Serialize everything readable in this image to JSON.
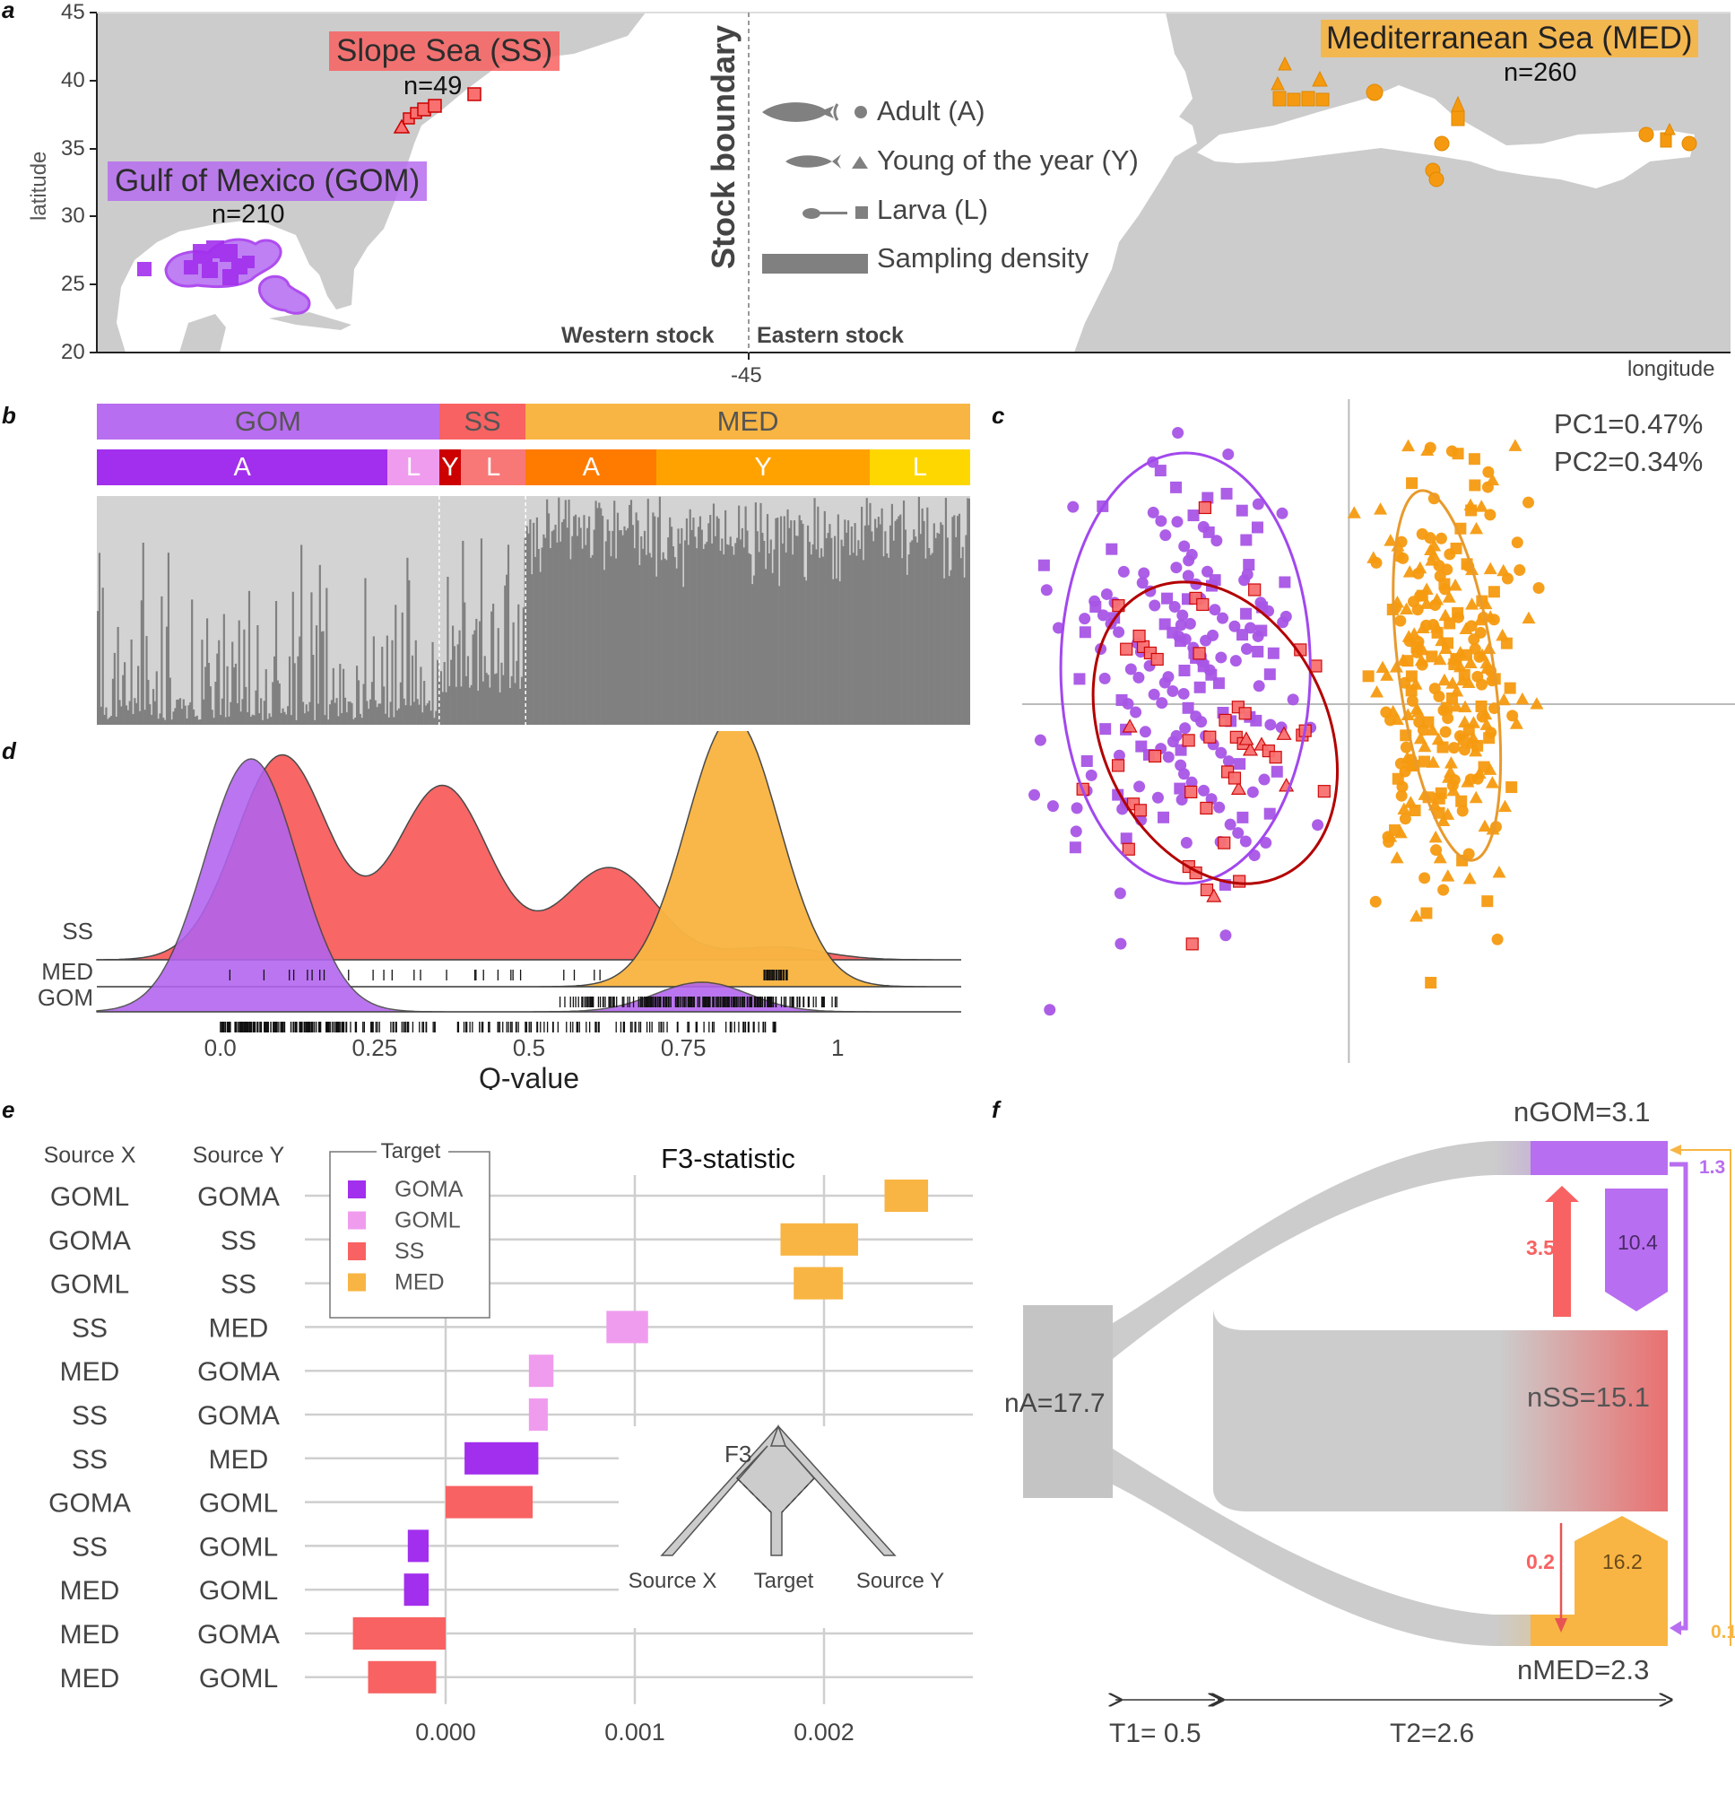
{
  "panels": {
    "a": "a",
    "b": "b",
    "c": "c",
    "d": "d",
    "e": "e",
    "f": "f"
  },
  "colors": {
    "GOM": "#b86ef0",
    "GOM_dark": "#a22fed",
    "GOML": "#f09cee",
    "SS": "#f86262",
    "SS_dark": "#cc0000",
    "MED": "#f8b543",
    "MED_A": "#ff7b00",
    "MED_Y": "#ffa200",
    "MED_L": "#ffd700",
    "land": "#cccccc",
    "grey_bar": "#808080"
  },
  "panel_a": {
    "ylabel": "latitude",
    "xlabel": "longitude",
    "lat_ticks": [
      "45",
      "40",
      "35",
      "30",
      "25",
      "20"
    ],
    "lon_tick": "-45",
    "stock_boundary": "Stock boundary",
    "western": "Western stock",
    "eastern": "Eastern stock",
    "regions": [
      {
        "name": "Slope Sea (SS)",
        "n": "n=49",
        "key": "SS"
      },
      {
        "name": "Gulf of Mexico (GOM)",
        "n": "n=210",
        "key": "GOM"
      },
      {
        "name": "Mediterranean Sea (MED)",
        "n": "n=260",
        "key": "MED"
      }
    ],
    "legend": [
      {
        "shape": "circle",
        "label": "Adult (A)",
        "icon": "adult-tuna-icon"
      },
      {
        "shape": "triangle",
        "label": "Young of the year (Y)",
        "icon": "young-tuna-icon"
      },
      {
        "shape": "square",
        "label": "Larva (L)",
        "icon": "larva-icon"
      },
      {
        "shape": "bar",
        "label": "Sampling density",
        "icon": "density-swatch"
      }
    ]
  },
  "panel_b": {
    "regions": [
      {
        "label": "GOM",
        "fraction": 0.392,
        "color": "#b86ef0"
      },
      {
        "label": "SS",
        "fraction": 0.099,
        "color": "#f86262"
      },
      {
        "label": "MED",
        "fraction": 0.509,
        "color": "#f8b543"
      }
    ],
    "stages": [
      {
        "label": "A",
        "fraction": 0.333,
        "color": "#a22fed"
      },
      {
        "label": "L",
        "fraction": 0.059,
        "color": "#f09cee"
      },
      {
        "label": "Y",
        "fraction": 0.025,
        "color": "#cc0000"
      },
      {
        "label": "L",
        "fraction": 0.074,
        "color": "#f87878"
      },
      {
        "label": "A",
        "fraction": 0.15,
        "color": "#ff7b00"
      },
      {
        "label": "Y",
        "fraction": 0.244,
        "color": "#ffa200"
      },
      {
        "label": "L",
        "fraction": 0.115,
        "color": "#ffd700"
      }
    ],
    "mean_ancestry": {
      "GOM": 0.12,
      "SS": 0.28,
      "MED": 0.82
    }
  },
  "chart_data": [
    {
      "id": "pca",
      "type": "scatter",
      "title": "",
      "annotations": [
        "PC1=0.47%",
        "PC2=0.34%"
      ],
      "groups": [
        {
          "name": "GOM",
          "color": "#a855e6",
          "ellipse": {
            "cx": -0.55,
            "cy": 0.1,
            "rx": 0.42,
            "ry": 0.6,
            "color": "#a148ee"
          }
        },
        {
          "name": "SS",
          "color": "#f86262",
          "ellipse": {
            "cx": -0.45,
            "cy": -0.08,
            "rx": 0.38,
            "ry": 0.44,
            "rot": -25,
            "color": "#b30000"
          }
        },
        {
          "name": "MED",
          "color": "#f59a10",
          "ellipse": {
            "cx": 0.33,
            "cy": 0.08,
            "rx": 0.16,
            "ry": 0.52,
            "rot": -8,
            "color": "#e89a2c"
          }
        }
      ],
      "xlim": [
        -1.1,
        1.3
      ],
      "ylim": [
        -1.0,
        0.85
      ]
    },
    {
      "id": "ridgeline",
      "type": "area",
      "xlabel": "Q-value",
      "x_ticks": [
        "0.0",
        "0.25",
        "0.5",
        "0.75",
        "1"
      ],
      "xlim": [
        -0.2,
        1.2
      ],
      "series": [
        {
          "name": "SS",
          "color": "#f86262",
          "peaks": [
            [
              0.1,
              0.78
            ],
            [
              0.37,
              0.69
            ],
            [
              0.63,
              0.3
            ],
            [
              0.9,
              0.04
            ]
          ]
        },
        {
          "name": "MED",
          "color": "#f8b543",
          "peaks": [
            [
              0.83,
              1.0
            ]
          ]
        },
        {
          "name": "GOM",
          "color": "#b263ef",
          "peaks": [
            [
              0.05,
              0.94
            ],
            [
              0.78,
              0.11
            ]
          ]
        }
      ]
    },
    {
      "id": "f3",
      "type": "bar",
      "title": "F3-statistic",
      "xlabel": "",
      "x_ticks": [
        "0.000",
        "0.001",
        "0.002"
      ],
      "xlim": [
        -0.00062,
        0.0028
      ],
      "headers": {
        "source_x": "Source X",
        "source_y": "Source Y"
      },
      "legend_title": "Target",
      "legend": [
        {
          "name": "GOMA",
          "color": "#a22fed"
        },
        {
          "name": "GOML",
          "color": "#f09cee"
        },
        {
          "name": "SS",
          "color": "#f86262"
        },
        {
          "name": "MED",
          "color": "#f8b543"
        }
      ],
      "rows": [
        {
          "x": "GOML",
          "y": "GOMA",
          "target": "MED",
          "lo": 0.00232,
          "hi": 0.00255
        },
        {
          "x": "GOMA",
          "y": "SS",
          "target": "MED",
          "lo": 0.00177,
          "hi": 0.00218
        },
        {
          "x": "GOML",
          "y": "SS",
          "target": "MED",
          "lo": 0.00184,
          "hi": 0.0021
        },
        {
          "x": "SS",
          "y": "MED",
          "target": "GOML",
          "lo": 0.00085,
          "hi": 0.00107
        },
        {
          "x": "MED",
          "y": "GOMA",
          "target": "GOML",
          "lo": 0.00044,
          "hi": 0.00057
        },
        {
          "x": "SS",
          "y": "GOMA",
          "target": "GOML",
          "lo": 0.00044,
          "hi": 0.00054
        },
        {
          "x": "SS",
          "y": "MED",
          "target": "GOMA",
          "lo": 0.0001,
          "hi": 0.00049
        },
        {
          "x": "GOMA",
          "y": "GOML",
          "target": "SS",
          "lo": 0.0,
          "hi": 0.00046
        },
        {
          "x": "SS",
          "y": "GOML",
          "target": "GOMA",
          "lo": -0.0002,
          "hi": -9e-05
        },
        {
          "x": "MED",
          "y": "GOML",
          "target": "GOMA",
          "lo": -0.00022,
          "hi": -9e-05
        },
        {
          "x": "MED",
          "y": "GOMA",
          "target": "SS",
          "lo": -0.00049,
          "hi": 0.0
        },
        {
          "x": "MED",
          "y": "GOML",
          "target": "SS",
          "lo": -0.00041,
          "hi": -5e-05
        }
      ],
      "inset": {
        "title": "F3",
        "labels": [
          "Source X",
          "Target",
          "Source Y"
        ]
      }
    }
  ],
  "panel_f": {
    "nA": "nA=17.7",
    "nGOM": "nGOM=3.1",
    "nSS": "nSS=15.1",
    "nMED": "nMED=2.3",
    "migration": [
      {
        "value": "3.5",
        "from": "SS",
        "to": "GOM",
        "color": "#f86262"
      },
      {
        "value": "10.4",
        "from": "GOM",
        "to": "SS",
        "color": "#b86ef0"
      },
      {
        "value": "0.2",
        "from": "SS",
        "to": "MED",
        "color": "#f86262"
      },
      {
        "value": "16.2",
        "from": "MED",
        "to": "SS",
        "color": "#f8b543"
      },
      {
        "value": "1.3",
        "from": "GOM",
        "to": "MED",
        "color": "#b86ef0"
      },
      {
        "value": "0.1",
        "from": "MED",
        "to": "GOM",
        "color": "#f8b543"
      }
    ],
    "T1": "T1= 0.5",
    "T2": "T2=2.6"
  }
}
